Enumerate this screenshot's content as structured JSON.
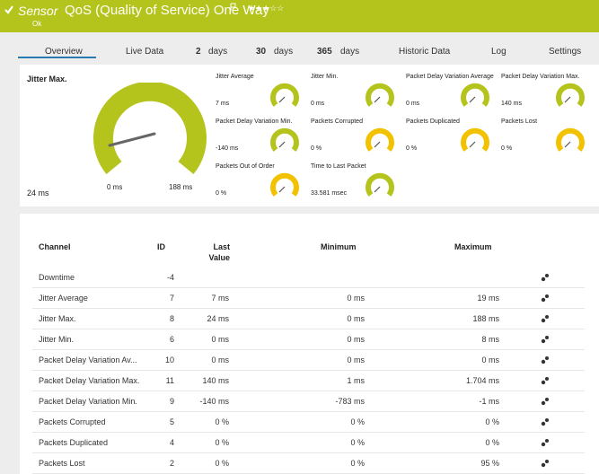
{
  "header": {
    "sensor_label": "Sensor",
    "title": "QoS (Quality of Service) One Way",
    "status": "Ok"
  },
  "tabs": [
    {
      "label": "Overview"
    },
    {
      "label": "Live Data"
    },
    {
      "number": "2",
      "unit": "days"
    },
    {
      "number": "30",
      "unit": "days"
    },
    {
      "number": "365",
      "unit": "days"
    },
    {
      "label": "Historic Data"
    },
    {
      "label": "Log"
    },
    {
      "label": "Settings"
    }
  ],
  "main_gauge": {
    "label": "Jitter Max.",
    "value": "24 ms",
    "min": "0 ms",
    "max": "188 ms"
  },
  "gauges": [
    {
      "label": "Jitter Average",
      "value": "7 ms",
      "color": "#b4c41c"
    },
    {
      "label": "Jitter Min.",
      "value": "0 ms",
      "color": "#b4c41c"
    },
    {
      "label": "Packet Delay Variation Average",
      "value": "0 ms",
      "color": "#b4c41c"
    },
    {
      "label": "Packet Delay Variation Max.",
      "value": "140 ms",
      "color": "#b4c41c"
    },
    {
      "label": "Packet Delay Variation Min.",
      "value": "-140 ms",
      "color": "#b4c41c"
    },
    {
      "label": "Packets Corrupted",
      "value": "0 %",
      "color": "#f2c200"
    },
    {
      "label": "Packets Duplicated",
      "value": "0 %",
      "color": "#f2c200"
    },
    {
      "label": "Packets Lost",
      "value": "0 %",
      "color": "#f2c200"
    },
    {
      "label": "Packets Out of Order",
      "value": "0 %",
      "color": "#f2c200"
    },
    {
      "label": "Time to Last Packet",
      "value": "33.581 msec",
      "color": "#b4c41c"
    }
  ],
  "table": {
    "headers": [
      "Channel",
      "ID",
      "Last Value",
      "Minimum",
      "Maximum"
    ],
    "rows": [
      [
        "Downtime",
        -4,
        null,
        null,
        null
      ],
      [
        "Jitter Average",
        7,
        "7 ms",
        "0 ms",
        "19 ms"
      ],
      [
        "Jitter Max.",
        8,
        "24 ms",
        "0 ms",
        "188 ms"
      ],
      [
        "Jitter Min.",
        6,
        "0 ms",
        "0 ms",
        "8 ms"
      ],
      [
        "Packet Delay Variation Av...",
        10,
        "0 ms",
        "0 ms",
        "0 ms"
      ],
      [
        "Packet Delay Variation Max.",
        11,
        "140 ms",
        "1 ms",
        "1.704 ms"
      ],
      [
        "Packet Delay Variation Min.",
        9,
        "-140 ms",
        "-783 ms",
        "-1 ms"
      ],
      [
        "Packets Corrupted",
        5,
        "0 %",
        "0 %",
        "0 %"
      ],
      [
        "Packets Duplicated",
        4,
        "0 %",
        "0 %",
        "0 %"
      ],
      [
        "Packets Lost",
        2,
        "0 %",
        "0 %",
        "95 %"
      ]
    ]
  }
}
